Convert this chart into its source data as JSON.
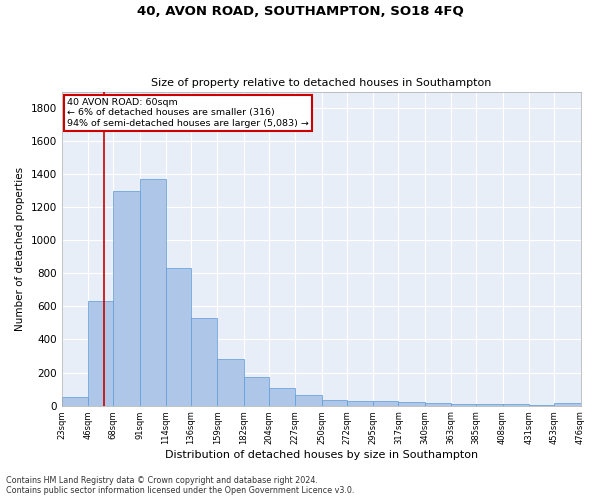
{
  "title1": "40, AVON ROAD, SOUTHAMPTON, SO18 4FQ",
  "title2": "Size of property relative to detached houses in Southampton",
  "xlabel": "Distribution of detached houses by size in Southampton",
  "ylabel": "Number of detached properties",
  "footnote1": "Contains HM Land Registry data © Crown copyright and database right 2024.",
  "footnote2": "Contains public sector information licensed under the Open Government Licence v3.0.",
  "annotation_title": "40 AVON ROAD: 60sqm",
  "annotation_line1": "← 6% of detached houses are smaller (316)",
  "annotation_line2": "94% of semi-detached houses are larger (5,083) →",
  "property_size": 60,
  "bar_edges": [
    23,
    46,
    68,
    91,
    114,
    136,
    159,
    182,
    204,
    227,
    250,
    272,
    295,
    317,
    340,
    363,
    385,
    408,
    431,
    453,
    476
  ],
  "bar_heights": [
    50,
    630,
    1300,
    1370,
    830,
    530,
    280,
    175,
    105,
    65,
    35,
    30,
    27,
    20,
    15,
    12,
    10,
    8,
    5,
    15
  ],
  "bar_color": "#aec6e8",
  "bar_edge_color": "#5b9bd5",
  "red_line_color": "#cc0000",
  "annotation_box_color": "#cc0000",
  "background_color": "#e8eef8",
  "grid_color": "#ffffff",
  "ylim": [
    0,
    1900
  ],
  "yticks": [
    0,
    200,
    400,
    600,
    800,
    1000,
    1200,
    1400,
    1600,
    1800
  ],
  "tick_labels": [
    "23sqm",
    "46sqm",
    "68sqm",
    "91sqm",
    "114sqm",
    "136sqm",
    "159sqm",
    "182sqm",
    "204sqm",
    "227sqm",
    "250sqm",
    "272sqm",
    "295sqm",
    "317sqm",
    "340sqm",
    "363sqm",
    "385sqm",
    "408sqm",
    "431sqm",
    "453sqm",
    "476sqm"
  ]
}
